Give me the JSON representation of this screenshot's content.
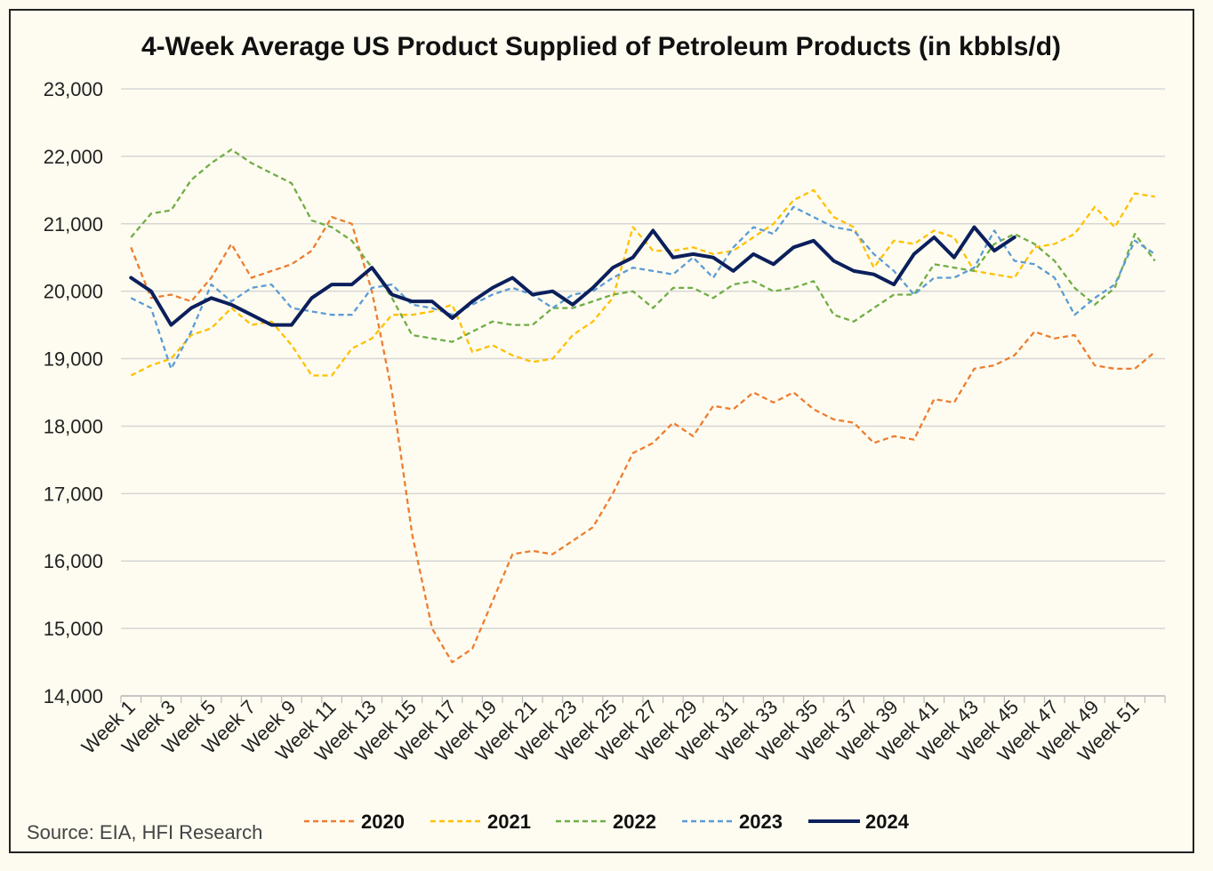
{
  "chart_data": {
    "type": "line",
    "title": "4-Week Average US Product Supplied of Petroleum Products (in kbbls/d)",
    "xlabel": "",
    "ylabel": "",
    "ylim": [
      14000,
      23000
    ],
    "yticks": [
      14000,
      15000,
      16000,
      17000,
      18000,
      19000,
      20000,
      21000,
      22000,
      23000
    ],
    "ytick_labels": [
      "14,000",
      "15,000",
      "16,000",
      "17,000",
      "18,000",
      "19,000",
      "20,000",
      "21,000",
      "22,000",
      "23,000"
    ],
    "x_tick_labels": [
      "Week 1",
      "Week 3",
      "Week 5",
      "Week 7",
      "Week 9",
      "Week 11",
      "Week 13",
      "Week 15",
      "Week 17",
      "Week 19",
      "Week 21",
      "Week 23",
      "Week 25",
      "Week 27",
      "Week 29",
      "Week 31",
      "Week 33",
      "Week 35",
      "Week 37",
      "Week 39",
      "Week 41",
      "Week 43",
      "Week 45",
      "Week 47",
      "Week 49",
      "Week 51"
    ],
    "grid": "horizontal",
    "legend_position": "bottom",
    "source": "Source: EIA, HFI Research",
    "series": [
      {
        "name": "2020",
        "color": "#ed7d31",
        "style": "dashed",
        "values": [
          20650,
          19900,
          19950,
          19850,
          20200,
          20700,
          20200,
          20300,
          20400,
          20600,
          21100,
          21000,
          20000,
          18500,
          16400,
          15000,
          14500,
          14700,
          15400,
          16100,
          16150,
          16100,
          16300,
          16500,
          17000,
          17600,
          17750,
          18050,
          17850,
          18300,
          18250,
          18500,
          18350,
          18500,
          18250,
          18100,
          18050,
          17750,
          17850,
          17800,
          18400,
          18350,
          18850,
          18900,
          19050,
          19400,
          19300,
          19350,
          18900,
          18850,
          18850,
          19100
        ]
      },
      {
        "name": "2021",
        "color": "#ffc000",
        "style": "dashed",
        "values": [
          18750,
          18900,
          19000,
          19350,
          19450,
          19750,
          19500,
          19550,
          19200,
          18750,
          18750,
          19150,
          19300,
          19650,
          19650,
          19700,
          19800,
          19100,
          19200,
          19050,
          18950,
          19000,
          19350,
          19550,
          19900,
          20950,
          20600,
          20600,
          20650,
          20550,
          20600,
          20800,
          21000,
          21350,
          21500,
          21100,
          20950,
          20350,
          20750,
          20700,
          20900,
          20800,
          20300,
          20250,
          20200,
          20650,
          20700,
          20850,
          21250,
          20950,
          21450,
          21400
        ]
      },
      {
        "name": "2022",
        "color": "#70ad47",
        "style": "dashed",
        "values": [
          20800,
          21150,
          21200,
          21650,
          21900,
          22100,
          21900,
          21750,
          21600,
          21050,
          20950,
          20750,
          20350,
          19900,
          19350,
          19300,
          19250,
          19400,
          19550,
          19500,
          19500,
          19750,
          19750,
          19850,
          19950,
          20000,
          19750,
          20050,
          20050,
          19900,
          20100,
          20150,
          20000,
          20050,
          20150,
          19650,
          19550,
          19750,
          19950,
          19950,
          20400,
          20350,
          20300,
          20700,
          20850,
          20700,
          20450,
          20050,
          19800,
          20050,
          20850,
          20450
        ]
      },
      {
        "name": "2023",
        "color": "#5b9bd5",
        "style": "dashed",
        "values": [
          19900,
          19750,
          18850,
          19400,
          20100,
          19850,
          20050,
          20100,
          19750,
          19700,
          19650,
          19650,
          20050,
          20100,
          19800,
          19750,
          19650,
          19800,
          19950,
          20050,
          19950,
          19750,
          19950,
          20000,
          20200,
          20350,
          20300,
          20250,
          20500,
          20200,
          20650,
          20950,
          20850,
          21250,
          21100,
          20950,
          20900,
          20550,
          20300,
          19950,
          20200,
          20200,
          20350,
          20900,
          20450,
          20400,
          20200,
          19650,
          19900,
          20100,
          20750,
          20550
        ]
      },
      {
        "name": "2024",
        "color": "#0b1f5c",
        "style": "solid",
        "values": [
          20200,
          20000,
          19500,
          19750,
          19900,
          19800,
          19650,
          19500,
          19500,
          19900,
          20100,
          20100,
          20350,
          19950,
          19850,
          19850,
          19600,
          19850,
          20050,
          20200,
          19950,
          20000,
          19800,
          20050,
          20350,
          20500,
          20900,
          20500,
          20550,
          20500,
          20300,
          20550,
          20400,
          20650,
          20750,
          20450,
          20300,
          20250,
          20100,
          20550,
          20800,
          20500,
          20950,
          20600,
          20800
        ]
      }
    ]
  }
}
